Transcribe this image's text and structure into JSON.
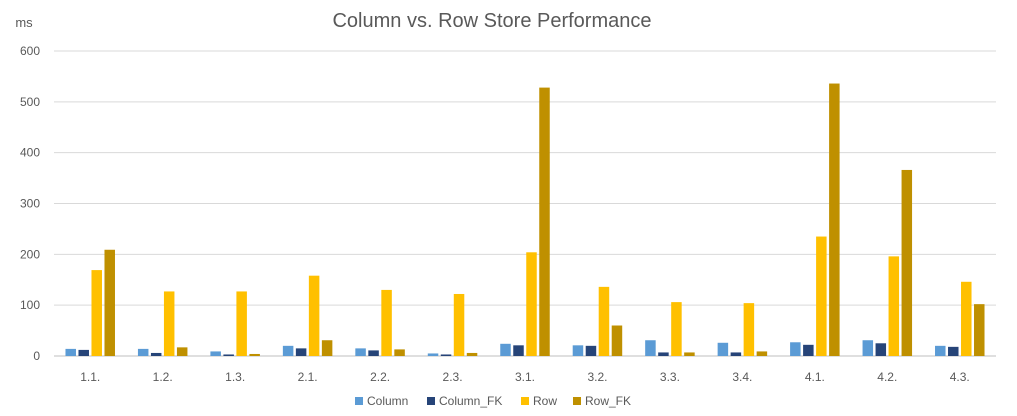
{
  "chart_data": {
    "type": "bar",
    "title": "Column vs. Row Store Performance",
    "ylabel": "ms",
    "xlabel": "",
    "ylim": [
      0,
      600
    ],
    "yticks": [
      0,
      100,
      200,
      300,
      400,
      500,
      600
    ],
    "grid": true,
    "legend_position": "bottom",
    "categories": [
      "1.1.",
      "1.2.",
      "1.3.",
      "2.1.",
      "2.2.",
      "2.3.",
      "3.1.",
      "3.2.",
      "3.3.",
      "3.4.",
      "4.1.",
      "4.2.",
      "4.3."
    ],
    "series": [
      {
        "name": "Column",
        "color": "#5B9BD5",
        "values": [
          14,
          14,
          9,
          20,
          15,
          5,
          24,
          21,
          31,
          26,
          27,
          31,
          20
        ]
      },
      {
        "name": "Column_FK",
        "color": "#264478",
        "values": [
          12,
          6,
          3,
          15,
          11,
          3,
          21,
          20,
          7,
          7,
          22,
          25,
          18
        ]
      },
      {
        "name": "Row",
        "color": "#FFC000",
        "values": [
          169,
          127,
          127,
          158,
          130,
          122,
          204,
          136,
          106,
          104,
          235,
          196,
          146
        ]
      },
      {
        "name": "Row_FK",
        "color": "#BF9000",
        "values": [
          209,
          17,
          4,
          31,
          13,
          6,
          528,
          60,
          7,
          9,
          536,
          366,
          102
        ]
      }
    ]
  }
}
